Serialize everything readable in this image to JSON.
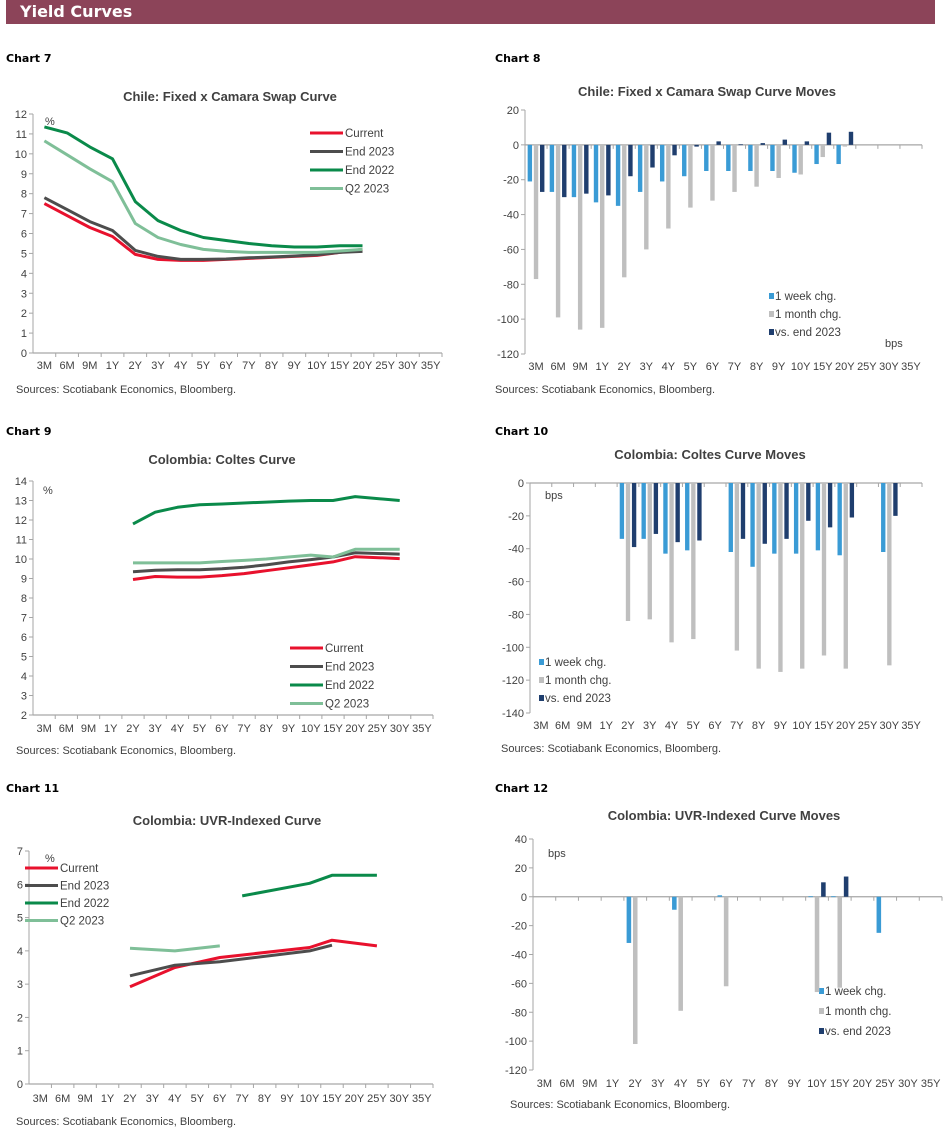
{
  "header": {
    "title": "Yield Curves"
  },
  "chart_labels": [
    "Chart 7",
    "Chart 8",
    "Chart 9",
    "Chart 10",
    "Chart 11",
    "Chart 12"
  ],
  "chart_data": [
    {
      "type": "line",
      "title": "Chile: Fixed x Camara Swap Curve",
      "unit": "%",
      "ylim": [
        0,
        12
      ],
      "ystep": 1,
      "grid": false,
      "legend": "top-right",
      "categories": [
        "3M",
        "6M",
        "9M",
        "1Y",
        "2Y",
        "3Y",
        "4Y",
        "5Y",
        "6Y",
        "7Y",
        "8Y",
        "9Y",
        "10Y",
        "15Y",
        "20Y",
        "25Y",
        "30Y",
        "35Y"
      ],
      "series": [
        {
          "name": "Current",
          "color": "#e8112d",
          "values": [
            7.5,
            6.9,
            6.3,
            5.85,
            4.95,
            4.7,
            4.65,
            4.65,
            4.7,
            4.75,
            4.8,
            4.85,
            4.9,
            5.05,
            5.2,
            null,
            null,
            null
          ]
        },
        {
          "name": "End 2023",
          "color": "#4d4d4d",
          "values": [
            7.8,
            7.2,
            6.6,
            6.15,
            5.15,
            4.85,
            4.7,
            4.7,
            4.72,
            4.78,
            4.82,
            4.87,
            4.93,
            5.05,
            5.1,
            null,
            null,
            null
          ]
        },
        {
          "name": "End 2022",
          "color": "#0a8a4a",
          "values": [
            11.35,
            11.05,
            10.35,
            9.75,
            7.6,
            6.65,
            6.15,
            5.8,
            5.65,
            5.5,
            5.38,
            5.32,
            5.32,
            5.38,
            5.38,
            null,
            null,
            null
          ]
        },
        {
          "name": "Q2 2023",
          "color": "#7fbf98",
          "values": [
            10.65,
            9.95,
            9.25,
            8.6,
            6.5,
            5.8,
            5.45,
            5.2,
            5.1,
            5.05,
            5.05,
            5.05,
            5.05,
            5.12,
            5.2,
            null,
            null,
            null
          ]
        }
      ],
      "source": "Sources: Scotiabank Economics, Bloomberg."
    },
    {
      "type": "bar",
      "title": "Chile: Fixed x Camara Swap Curve Moves",
      "unit": "bps",
      "ylim": [
        -120,
        20
      ],
      "ystep": 20,
      "grid": false,
      "legend": "bottom-right",
      "categories": [
        "3M",
        "6M",
        "9M",
        "1Y",
        "2Y",
        "3Y",
        "4Y",
        "5Y",
        "6Y",
        "7Y",
        "8Y",
        "9Y",
        "10Y",
        "15Y",
        "20Y",
        "25Y",
        "30Y",
        "35Y"
      ],
      "series": [
        {
          "name": "1 week chg.",
          "color": "#3a9bd5",
          "values": [
            -21,
            -27,
            -30,
            -33,
            -35,
            -27,
            -21,
            -18,
            -15,
            -15,
            -15,
            -15,
            -16,
            -11,
            -11,
            null,
            null,
            null
          ]
        },
        {
          "name": "1 month chg.",
          "color": "#bfbfbf",
          "values": [
            -77,
            -99,
            -106,
            -105,
            -76,
            -60,
            -48,
            -36,
            -32,
            -27,
            -24,
            -19,
            -17,
            -7,
            -1,
            null,
            null,
            null
          ]
        },
        {
          "name": "vs. end 2023",
          "color": "#1f3e6e",
          "values": [
            -27,
            -30,
            -28,
            -29,
            -18,
            -13,
            -6,
            -1,
            2,
            0.3,
            1,
            3,
            2,
            7,
            7.5,
            null,
            null,
            null
          ]
        }
      ],
      "source": "Sources: Scotiabank Economics, Bloomberg."
    },
    {
      "type": "line",
      "title": "Colombia: Coltes Curve",
      "unit": "%",
      "ylim": [
        2,
        14
      ],
      "ystep": 1,
      "grid": false,
      "legend": "bottom-right",
      "categories": [
        "3M",
        "6M",
        "9M",
        "1Y",
        "2Y",
        "3Y",
        "4Y",
        "5Y",
        "6Y",
        "7Y",
        "8Y",
        "9Y",
        "10Y",
        "15Y",
        "20Y",
        "25Y",
        "30Y",
        "35Y"
      ],
      "series": [
        {
          "name": "Current",
          "color": "#e8112d",
          "values": [
            null,
            null,
            null,
            null,
            8.95,
            9.1,
            9.07,
            9.07,
            9.15,
            9.25,
            9.4,
            9.55,
            9.7,
            9.85,
            10.12,
            null,
            10.02,
            null
          ]
        },
        {
          "name": "End 2023",
          "color": "#4d4d4d",
          "values": [
            null,
            null,
            null,
            null,
            9.35,
            9.42,
            9.45,
            9.45,
            9.5,
            9.58,
            9.7,
            9.85,
            9.97,
            10.1,
            10.32,
            null,
            10.25,
            null
          ]
        },
        {
          "name": "End 2022",
          "color": "#0a8a4a",
          "values": [
            null,
            null,
            null,
            null,
            11.8,
            12.4,
            12.65,
            12.78,
            12.82,
            12.87,
            12.92,
            12.97,
            13.0,
            13.0,
            13.2,
            null,
            13.0,
            null
          ]
        },
        {
          "name": "Q2 2023",
          "color": "#7fbf98",
          "values": [
            null,
            null,
            null,
            null,
            9.8,
            9.8,
            9.8,
            9.8,
            9.87,
            9.93,
            10.0,
            10.1,
            10.2,
            10.1,
            10.5,
            null,
            10.5,
            null
          ]
        }
      ],
      "source": "Sources: Scotiabank Economics, Bloomberg."
    },
    {
      "type": "bar",
      "title": "Colombia: Coltes Curve Moves",
      "unit": "bps",
      "ylim": [
        -140,
        0
      ],
      "ystep": 20,
      "grid": false,
      "legend": "bottom-left",
      "categories": [
        "3M",
        "6M",
        "9M",
        "1Y",
        "2Y",
        "3Y",
        "4Y",
        "5Y",
        "6Y",
        "7Y",
        "8Y",
        "9Y",
        "10Y",
        "15Y",
        "20Y",
        "25Y",
        "30Y",
        "35Y"
      ],
      "series": [
        {
          "name": "1 week chg.",
          "color": "#3a9bd5",
          "values": [
            null,
            null,
            null,
            null,
            -34,
            -34,
            -43,
            -41,
            null,
            -42,
            -51,
            -43,
            -43,
            -41,
            -44,
            null,
            -42,
            null
          ]
        },
        {
          "name": "1 month chg.",
          "color": "#bfbfbf",
          "values": [
            null,
            null,
            null,
            null,
            -84,
            -83,
            -97,
            -95,
            null,
            -102,
            -113,
            -115,
            -113,
            -105,
            -113,
            null,
            -111,
            null
          ]
        },
        {
          "name": "vs. end 2023",
          "color": "#1f3e6e",
          "values": [
            null,
            null,
            null,
            null,
            -39,
            -31,
            -36,
            -35,
            null,
            -34,
            -37,
            -34,
            -23,
            -27,
            -21,
            null,
            -20,
            null
          ]
        }
      ],
      "source": "Sources: Scotiabank Economics, Bloomberg."
    },
    {
      "type": "line",
      "title": "Colombia: UVR-Indexed Curve",
      "unit": "%",
      "ylim": [
        0,
        7
      ],
      "ystep": 1,
      "grid": false,
      "legend": "top-left",
      "categories": [
        "3M",
        "6M",
        "9M",
        "1Y",
        "2Y",
        "3Y",
        "4Y",
        "5Y",
        "6Y",
        "7Y",
        "8Y",
        "9Y",
        "10Y",
        "15Y",
        "20Y",
        "25Y",
        "30Y",
        "35Y"
      ],
      "series": [
        {
          "name": "Current",
          "color": "#e8112d",
          "values": [
            null,
            null,
            null,
            null,
            2.92,
            null,
            3.5,
            null,
            3.8,
            null,
            null,
            null,
            4.1,
            4.32,
            null,
            4.15,
            null,
            null
          ]
        },
        {
          "name": "End 2023",
          "color": "#4d4d4d",
          "values": [
            null,
            null,
            null,
            null,
            3.25,
            null,
            3.57,
            null,
            3.67,
            null,
            null,
            null,
            4.0,
            4.17,
            null,
            null,
            null,
            null
          ]
        },
        {
          "name": "End 2022",
          "color": "#0a8a4a",
          "values": [
            null,
            null,
            null,
            null,
            null,
            null,
            null,
            null,
            null,
            5.65,
            null,
            null,
            6.03,
            6.27,
            null,
            6.27,
            null,
            null
          ]
        },
        {
          "name": "Q2 2023",
          "color": "#7fbf98",
          "values": [
            null,
            null,
            null,
            null,
            4.08,
            null,
            4.0,
            null,
            4.15,
            null,
            null,
            null,
            null,
            null,
            null,
            null,
            null,
            null
          ]
        }
      ],
      "source": "Sources: Scotiabank Economics, Bloomberg."
    },
    {
      "type": "bar",
      "title": "Colombia: UVR-Indexed Curve Moves",
      "unit": "bps",
      "ylim": [
        -120,
        40
      ],
      "ystep": 20,
      "grid": false,
      "legend": "bottom-right",
      "categories": [
        "3M",
        "6M",
        "9M",
        "1Y",
        "2Y",
        "3Y",
        "4Y",
        "5Y",
        "6Y",
        "7Y",
        "8Y",
        "9Y",
        "10Y",
        "15Y",
        "20Y",
        "25Y",
        "30Y",
        "35Y"
      ],
      "series": [
        {
          "name": "1 week chg.",
          "color": "#3a9bd5",
          "values": [
            null,
            null,
            null,
            null,
            -32,
            null,
            -9,
            null,
            1,
            null,
            null,
            null,
            0.3,
            0.3,
            null,
            -25,
            null,
            null
          ]
        },
        {
          "name": "1 month chg.",
          "color": "#bfbfbf",
          "values": [
            null,
            null,
            null,
            null,
            -102,
            null,
            -79,
            null,
            -62,
            null,
            null,
            null,
            -66,
            -63,
            null,
            null,
            null,
            null
          ]
        },
        {
          "name": "vs. end 2023",
          "color": "#1f3e6e",
          "values": [
            null,
            null,
            null,
            null,
            null,
            null,
            null,
            null,
            null,
            null,
            null,
            null,
            10,
            14,
            null,
            null,
            null,
            null
          ]
        }
      ],
      "source": "Sources: Scotiabank Economics, Bloomberg."
    }
  ]
}
